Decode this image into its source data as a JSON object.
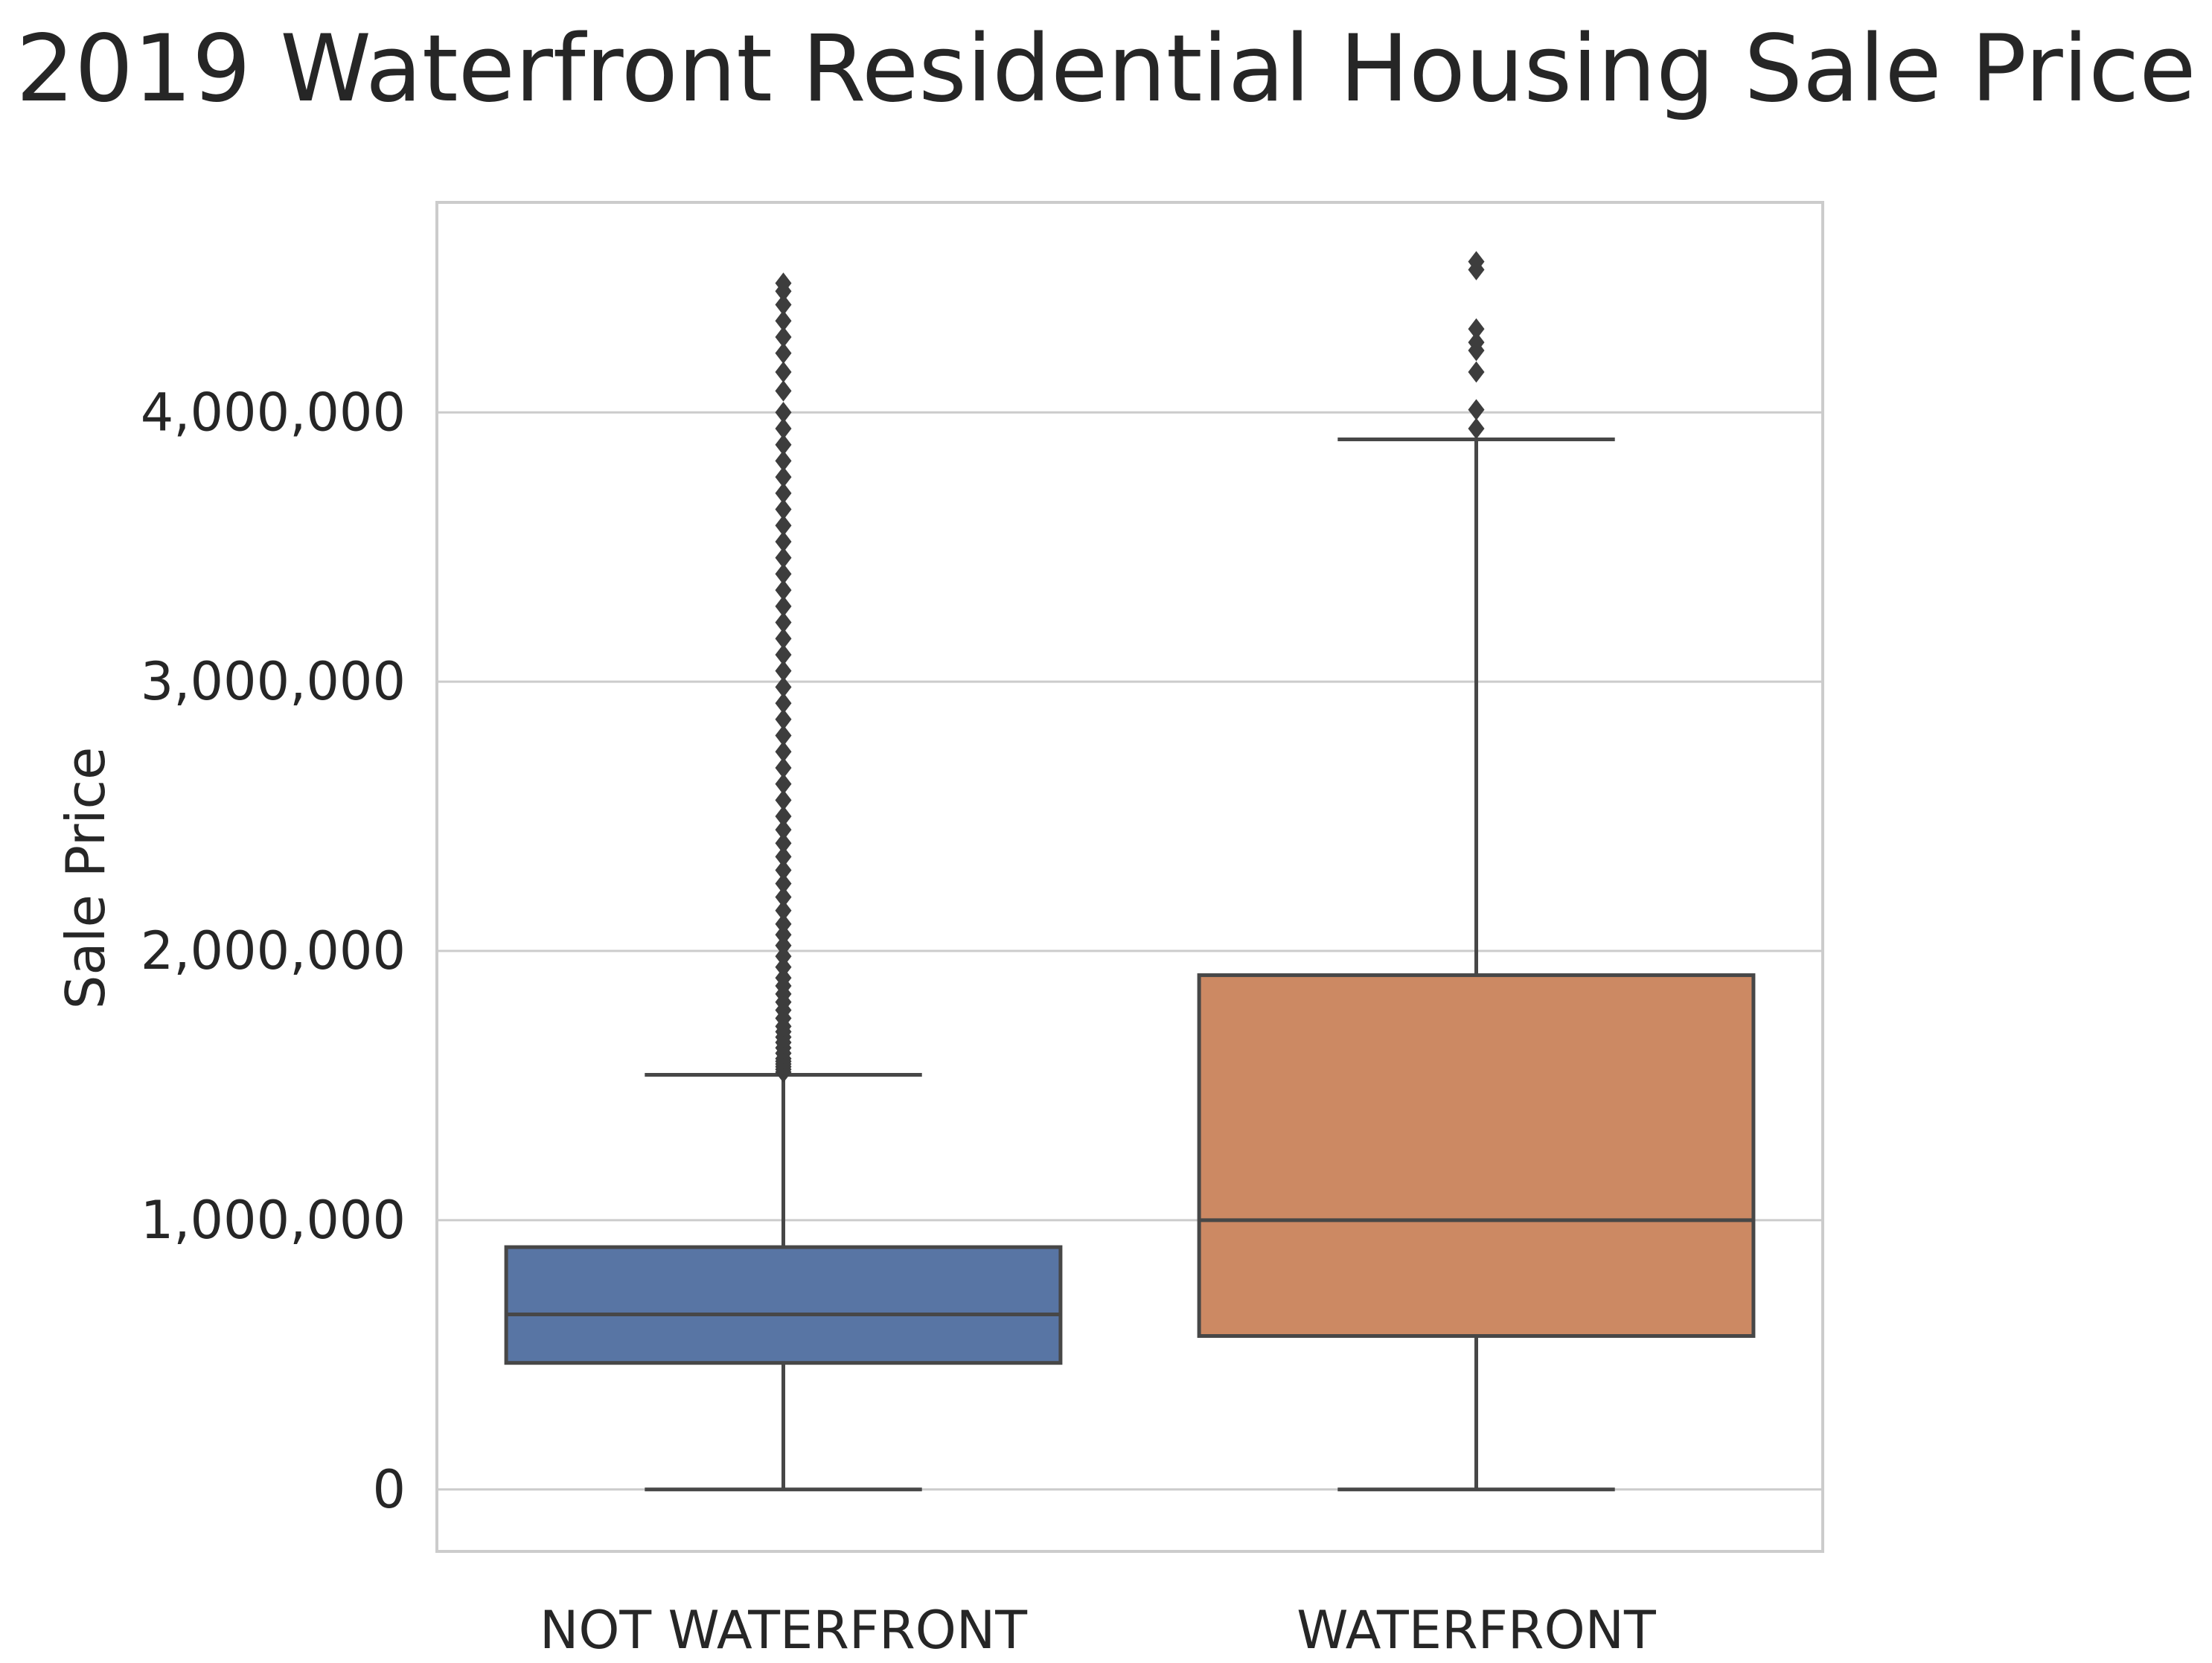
{
  "chart_data": {
    "type": "box",
    "title": "2019 Waterfront Residential Housing Sale Price",
    "xlabel": "",
    "ylabel": "Sale Price",
    "ylim": [
      -230000,
      4780000
    ],
    "yticks": [
      0,
      1000000,
      2000000,
      3000000,
      4000000
    ],
    "ytick_labels": [
      "0",
      "1,000,000",
      "2,000,000",
      "3,000,000",
      "4,000,000"
    ],
    "grid": true,
    "categories": [
      "NOT WATERFRONT",
      "WATERFRONT"
    ],
    "boxes": [
      {
        "category": "NOT WATERFRONT",
        "color": "#5875a4",
        "whisker_low": 0,
        "q1": 470000,
        "median": 650000,
        "q3": 900000,
        "whisker_high": 1540000,
        "outliers": [
          1550000,
          1560000,
          1570000,
          1580000,
          1590000,
          1600000,
          1620000,
          1640000,
          1660000,
          1680000,
          1700000,
          1720000,
          1750000,
          1780000,
          1810000,
          1840000,
          1870000,
          1900000,
          1940000,
          1980000,
          2020000,
          2060000,
          2100000,
          2150000,
          2200000,
          2250000,
          2300000,
          2350000,
          2400000,
          2450000,
          2500000,
          2560000,
          2620000,
          2680000,
          2740000,
          2800000,
          2860000,
          2920000,
          2980000,
          3040000,
          3100000,
          3160000,
          3220000,
          3280000,
          3340000,
          3400000,
          3460000,
          3520000,
          3580000,
          3640000,
          3700000,
          3760000,
          3820000,
          3880000,
          3940000,
          4000000,
          4080000,
          4150000,
          4220000,
          4280000,
          4340000,
          4400000,
          4450000,
          4480000
        ]
      },
      {
        "category": "WATERFRONT",
        "color": "#cc8963",
        "whisker_low": 0,
        "q1": 570000,
        "median": 1000000,
        "q3": 1910000,
        "whisker_high": 3900000,
        "outliers": [
          3940000,
          4010000,
          4150000,
          4230000,
          4260000,
          4310000,
          4530000,
          4560000
        ]
      }
    ]
  }
}
